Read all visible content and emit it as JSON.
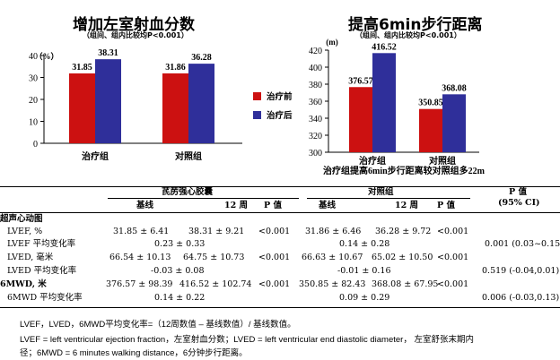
{
  "chart_data": [
    {
      "type": "bar",
      "title": "增加左室射血分数",
      "subtitle": "（组间、组内比较均P<0.001）",
      "ylabel": "（%）",
      "ylim": [
        0,
        40
      ],
      "yticks": [
        0,
        10,
        20,
        30,
        40
      ],
      "categories": [
        "治疗组",
        "对照组"
      ],
      "series": [
        {
          "name": "治疗前",
          "color": "#cc1111",
          "values": [
            31.85,
            31.86
          ]
        },
        {
          "name": "治疗后",
          "color": "#2f2f9a",
          "values": [
            38.31,
            36.28
          ]
        }
      ],
      "data_labels": [
        [
          "31.85",
          "31.86"
        ],
        [
          "38.31",
          "36.28"
        ]
      ],
      "legend": "right"
    },
    {
      "type": "bar",
      "title": "提高6min步行距离",
      "subtitle": "（组间、组内比较均P<0.001）",
      "ylabel": "(m)",
      "ylim": [
        300,
        420
      ],
      "yticks": [
        300,
        320,
        340,
        360,
        380,
        400,
        420
      ],
      "categories": [
        "治疗组",
        "对照组"
      ],
      "series": [
        {
          "name": "治疗前",
          "color": "#cc1111",
          "values": [
            376.57,
            350.85
          ]
        },
        {
          "name": "治疗后",
          "color": "#2f2f9a",
          "values": [
            416.52,
            368.08
          ]
        }
      ],
      "data_labels": [
        [
          "376.57",
          "350.85"
        ],
        [
          "416.52",
          "368.08"
        ]
      ],
      "annotation": "治疗组提高6min步行距离较对照组多22m"
    }
  ],
  "table": {
    "group_headers": [
      "芪苈强心胶囊",
      "对照组"
    ],
    "p_header": [
      "P 值",
      "(95% CI)"
    ],
    "col_headers": [
      "基线",
      "12 周",
      "P 值",
      "基线",
      "12 周",
      "P 值"
    ],
    "rows": [
      {
        "label": "超声心动图",
        "bold": true,
        "indent": false
      },
      {
        "label": "LVEF, %",
        "indent": true,
        "t_base": "31.85 ± 6.41",
        "t_12": "38.31 ± 9.21",
        "t_p": "<0.001",
        "c_base": "31.86 ± 6.46",
        "c_12": "36.28 ± 9.72",
        "c_p": "<0.001"
      },
      {
        "label": "LVEF 平均变化率",
        "indent": true,
        "t_change": "0.23 ± 0.33",
        "c_change": "0.14 ± 0.28",
        "p_ci": "0.001 (0.03~0.15)"
      },
      {
        "label": "LVED, 毫米",
        "indent": true,
        "t_base": "66.54 ± 10.13",
        "t_12": "64.75 ± 10.73",
        "t_p": "<0.001",
        "c_base": "66.63 ± 10.67",
        "c_12": "65.02 ± 10.50",
        "c_p": "<0.001"
      },
      {
        "label": "LVED 平均变化率",
        "indent": true,
        "t_change": "-0.03 ± 0.08",
        "c_change": "-0.01 ± 0.16",
        "p_ci": "0.519 (-0.04,0.01)"
      },
      {
        "label": "6MWD, 米",
        "bold": true,
        "indent": false,
        "t_base": "376.57 ± 98.39",
        "t_12": "416.52 ± 102.74",
        "t_p": "<0.001",
        "c_base": "350.85 ± 82.43",
        "c_12": "368.08 ± 67.95",
        "c_p": "<0.001"
      },
      {
        "label": "6MWD 平均变化率",
        "indent": true,
        "t_change": "0.14 ± 0.22",
        "c_change": "0.09 ± 0.29",
        "p_ci": "0.006 (-0.03,0.13)"
      }
    ]
  },
  "notes": [
    "LVEF，LVED，6MWD平均变化率=（12周数值 – 基线数值）/ 基线数值。",
    "LVEF = left ventricular ejection fraction，左室射血分数；LVED = left ventricular end diastolic diameter，   左室舒张末期内",
    "径；6MWD = 6 minutes walking distance，6分钟步行距离。"
  ]
}
